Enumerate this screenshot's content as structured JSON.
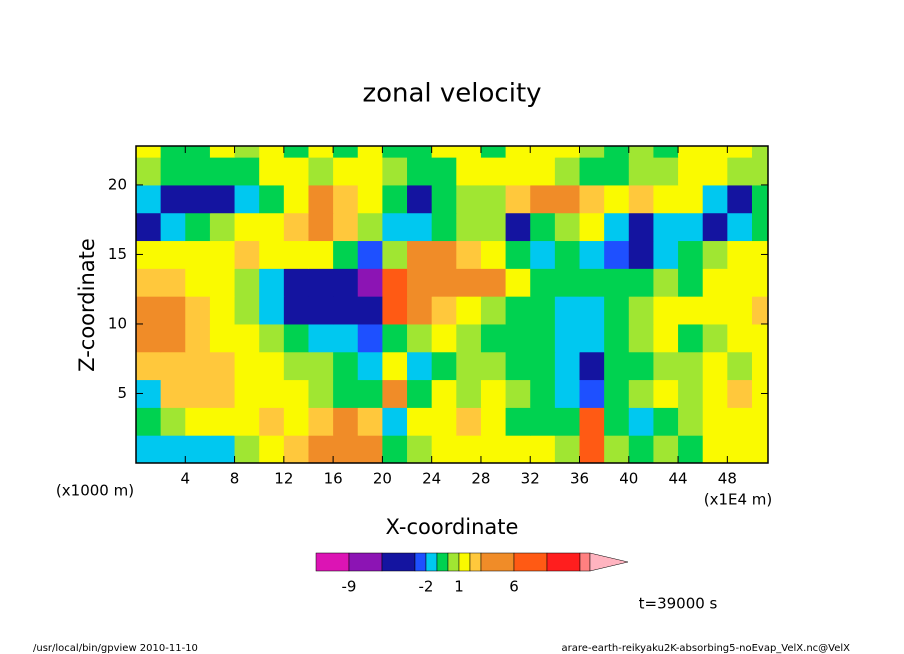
{
  "chart_data": {
    "type": "contour",
    "title": "zonal velocity",
    "x_label": "X-coordinate",
    "y_label": "Z-coordinate",
    "x_unit_left": "(x1000 m)",
    "x_unit_right": "(x1E4 m)",
    "time_label": "t=39000 s",
    "footer_left": "/usr/local/bin/gpview  2010-11-10",
    "footer_right": "arare-earth-reikyaku2K-absorbing5-noEvap_VelX.nc@VelX",
    "xlim": [
      0,
      51.3
    ],
    "ylim": [
      0,
      22.8
    ],
    "xticks": [
      4,
      8,
      12,
      16,
      20,
      24,
      28,
      32,
      36,
      40,
      44,
      48
    ],
    "yticks": [
      5,
      10,
      15,
      20
    ],
    "x": [
      1,
      3,
      5,
      7,
      9,
      11,
      13,
      15,
      17,
      19,
      21,
      23,
      25,
      27,
      29,
      31,
      33,
      35,
      37,
      39,
      41,
      43,
      45,
      47,
      49,
      51
    ],
    "y": [
      1,
      3,
      5,
      7,
      9,
      11,
      13,
      15,
      17,
      19,
      21,
      23
    ],
    "values": [
      [
        -1.5,
        -1.5,
        -1.5,
        -1.5,
        0.5,
        1.5,
        2.5,
        4,
        4,
        3,
        -1,
        0.5,
        1.5,
        1.5,
        1.5,
        1.5,
        1.5,
        0.5,
        7,
        0.5,
        -0.5,
        0.5,
        -0.5,
        1.5,
        1.5,
        1.5
      ],
      [
        -0.5,
        0.5,
        1.5,
        1.5,
        1.5,
        2.5,
        1.5,
        2.5,
        4,
        2.5,
        -2,
        1.5,
        1.5,
        2.5,
        1.5,
        -0.5,
        -0.5,
        -0.5,
        7,
        -0.5,
        -1.5,
        -0.5,
        0.5,
        1.5,
        1.5,
        1.5
      ],
      [
        -1.5,
        2.5,
        2.5,
        2.5,
        1.5,
        1.5,
        1.5,
        0.5,
        -0.5,
        -0.5,
        3,
        -0.5,
        1.5,
        0.5,
        1.5,
        0.5,
        -0.5,
        -1.5,
        -3,
        -0.5,
        0.5,
        1.5,
        0.5,
        1.5,
        2.5,
        1.5
      ],
      [
        2.5,
        2.5,
        2.5,
        2.5,
        1.5,
        1.5,
        0.5,
        0.5,
        -0.5,
        -1.5,
        1,
        -1.5,
        -0.5,
        0.5,
        0.5,
        -0.5,
        -0.5,
        -1.5,
        -4,
        -0.5,
        -0.5,
        0.5,
        0.5,
        1.5,
        0.5,
        1.5
      ],
      [
        3.5,
        3.5,
        2.5,
        1.5,
        1.5,
        0.5,
        -0.5,
        -1.5,
        -1.5,
        -2.5,
        -1,
        0.5,
        1.5,
        0.5,
        -0.5,
        -0.5,
        -0.5,
        -1.5,
        -1.5,
        -0.5,
        0.5,
        1.5,
        -0.5,
        0.5,
        1.5,
        1.5
      ],
      [
        3.5,
        3.5,
        2.5,
        1.5,
        0.5,
        -1.5,
        -4,
        -4,
        -4,
        -4.5,
        7,
        3.5,
        2.5,
        1.5,
        0.5,
        -0.5,
        -0.5,
        -1.5,
        -1.5,
        -0.5,
        0.5,
        1.5,
        1.5,
        1.5,
        1.5,
        2.5
      ],
      [
        2.5,
        2.5,
        1.5,
        1.5,
        0.5,
        -1.5,
        -4,
        -4,
        -4,
        -7,
        7,
        4,
        4,
        4,
        4,
        1.5,
        -0.5,
        -0.5,
        -0.5,
        -0.5,
        -0.5,
        0.5,
        -0.5,
        1.5,
        1.5,
        1.5
      ],
      [
        1.5,
        1.5,
        1.5,
        1.5,
        2.5,
        1.5,
        1.5,
        1.5,
        -0.5,
        -2.5,
        0,
        3.5,
        3.5,
        2.5,
        1.5,
        -0.5,
        -1.5,
        -0.5,
        -1.5,
        -2.5,
        -4,
        -1.5,
        -0.5,
        0.5,
        1.5,
        1.5
      ],
      [
        -4,
        -1.5,
        -0.5,
        0.5,
        1.5,
        1.5,
        2.5,
        4,
        2.5,
        0.5,
        -1.5,
        -1.5,
        -0.5,
        0.5,
        0.5,
        -4,
        -0.5,
        0.5,
        1.5,
        -1.5,
        -4,
        -1.5,
        -1.5,
        -4,
        -1.5,
        -0.5
      ],
      [
        -1.5,
        -4,
        -4,
        -4,
        -1.5,
        -0.5,
        1.5,
        4,
        2.5,
        1.5,
        -0.5,
        -4,
        -0.5,
        0.5,
        0.5,
        2.5,
        4,
        4,
        2.5,
        1.5,
        2.5,
        1.5,
        1.5,
        -1.5,
        -4,
        -0.5
      ],
      [
        0.5,
        -0.5,
        -0.5,
        -0.5,
        -0.5,
        1.5,
        1.5,
        0.5,
        1.5,
        1.5,
        0.5,
        -0.5,
        -0.5,
        1.5,
        1.5,
        1.5,
        1.5,
        0.5,
        -0.5,
        -0.5,
        0.5,
        0.5,
        1.5,
        1.5,
        0.5,
        0.5
      ],
      [
        1.5,
        -0.5,
        -0.5,
        1.5,
        0.5,
        1.5,
        -0.5,
        1.5,
        -0.5,
        1.5,
        -0.5,
        -0.5,
        1.5,
        1.5,
        -0.5,
        1.5,
        1.5,
        1.5,
        0.5,
        -0.5,
        0.5,
        -0.5,
        1.5,
        1.5,
        1.5,
        0.5
      ]
    ],
    "levels": [
      -12,
      -9,
      -6,
      -3,
      -2,
      -1,
      0,
      1,
      2,
      3,
      6,
      9,
      12
    ],
    "colors": [
      "#dc14b4",
      "#8c14b4",
      "#1414a0",
      "#1e50ff",
      "#00c8f0",
      "#00d250",
      "#a0e632",
      "#fafa00",
      "#ffc83c",
      "#f08c28",
      "#ff5a14",
      "#ff1e1e"
    ],
    "over_color": "#ff8080",
    "arrow_color": "#ffb4c0",
    "colorbar_ticks": [
      -9,
      -2,
      1,
      6
    ]
  }
}
